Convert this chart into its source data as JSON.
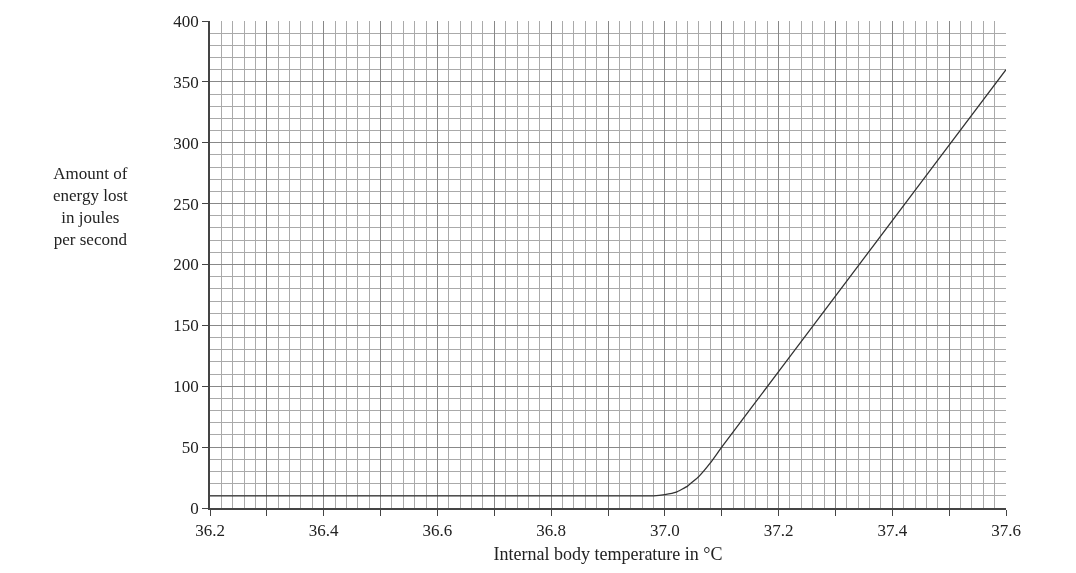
{
  "chart_data": {
    "type": "line",
    "xlabel": "Internal body temperature in °C",
    "ylabel": "Amount of\nenergy lost\nin joules\nper second",
    "x": [
      36.2,
      36.98,
      37.0,
      37.02,
      37.04,
      37.06,
      37.08,
      37.1,
      37.2,
      37.3,
      37.4,
      37.5,
      37.6
    ],
    "series": [
      {
        "color": "#333333",
        "values": [
          10,
          10,
          11,
          13,
          18,
          26,
          37,
          50,
          112,
          174,
          236,
          298,
          360
        ]
      }
    ],
    "xlim": [
      36.2,
      37.6
    ],
    "xticks": [
      {
        "value": 36.2,
        "label": "36.2"
      },
      {
        "value": 36.3,
        "label": null
      },
      {
        "value": 36.4,
        "label": "36.4"
      },
      {
        "value": 36.5,
        "label": null
      },
      {
        "value": 36.6,
        "label": "36.6"
      },
      {
        "value": 36.7,
        "label": null
      },
      {
        "value": 36.8,
        "label": "36.8"
      },
      {
        "value": 36.9,
        "label": null
      },
      {
        "value": 37.0,
        "label": "37.0"
      },
      {
        "value": 37.1,
        "label": null
      },
      {
        "value": 37.2,
        "label": "37.2"
      },
      {
        "value": 37.3,
        "label": null
      },
      {
        "value": 37.4,
        "label": "37.4"
      },
      {
        "value": 37.5,
        "label": null
      },
      {
        "value": 37.6,
        "label": "37.6"
      }
    ],
    "ylim": [
      0,
      400
    ],
    "yticks": [
      0,
      50,
      100,
      150,
      200,
      250,
      300,
      350,
      400
    ],
    "grid": true,
    "marker": "none",
    "line_style": "solid"
  }
}
